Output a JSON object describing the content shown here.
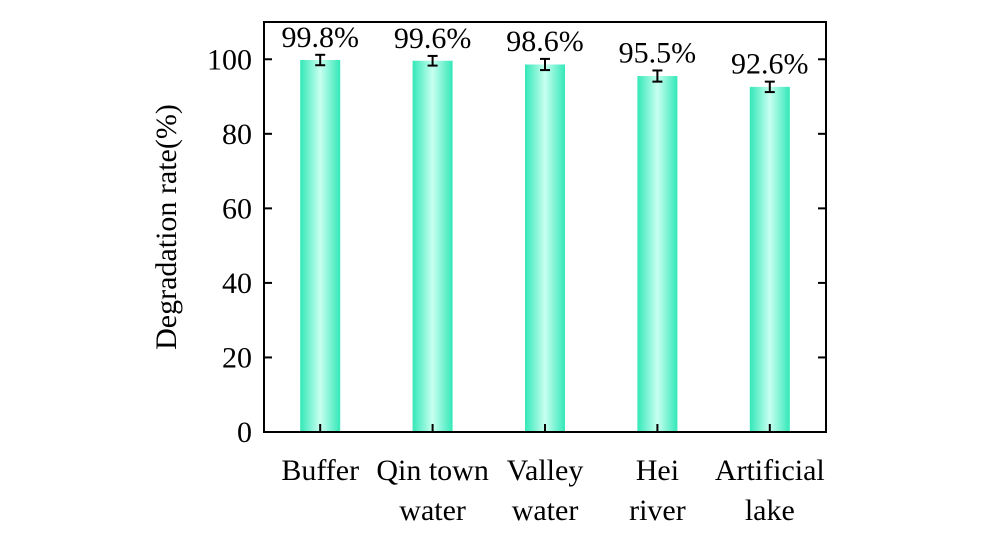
{
  "chart_data": {
    "type": "bar",
    "categories": [
      [
        "Buffer"
      ],
      [
        "Qin town",
        "water"
      ],
      [
        "Valley",
        "water"
      ],
      [
        "Hei",
        "river"
      ],
      [
        "Artificial",
        "lake"
      ]
    ],
    "values": [
      99.8,
      99.6,
      98.6,
      95.5,
      92.6
    ],
    "value_labels": [
      "99.8%",
      "99.6%",
      "98.6%",
      "95.5%",
      "92.6%"
    ],
    "error": [
      1.4,
      1.3,
      1.5,
      1.5,
      1.4
    ],
    "title": "",
    "xlabel": "",
    "ylabel": "Degradation rate(%)",
    "ylim": [
      0,
      110
    ],
    "yticks": [
      0,
      20,
      40,
      60,
      80,
      100
    ],
    "grid": false,
    "legend": "none",
    "colors": {
      "bar_edge": "#33e8b8",
      "bar_center": "#c8fff0",
      "axis": "#000000"
    }
  }
}
